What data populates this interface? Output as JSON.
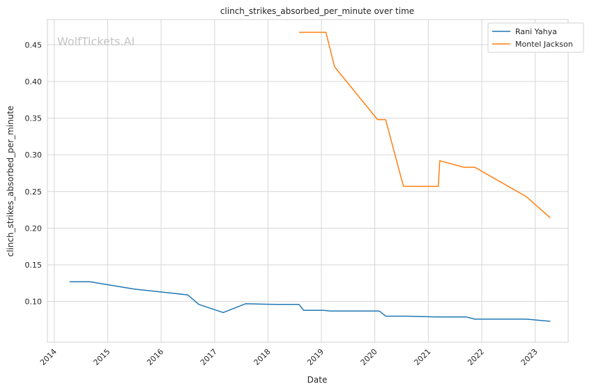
{
  "chart_data": {
    "type": "line",
    "title": "clinch_strikes_absorbed_per_minute over time",
    "xlabel": "Date",
    "ylabel": "clinch_strikes_absorbed_per_minute",
    "x_ticks": [
      "2014",
      "2015",
      "2016",
      "2017",
      "2018",
      "2019",
      "2020",
      "2021",
      "2022",
      "2023"
    ],
    "y_ticks": [
      "0.10",
      "0.15",
      "0.20",
      "0.25",
      "0.30",
      "0.35",
      "0.40",
      "0.45"
    ],
    "xlim": [
      "2013-11-15",
      "2023-08-15"
    ],
    "ylim": [
      0.0445,
      0.4845
    ],
    "grid": true,
    "legend_position": "top-right",
    "watermark": "WolfTickets.AI",
    "series": [
      {
        "name": "Rani Yahya",
        "color": "#1f77b4",
        "points": [
          [
            "2014-04-15",
            0.127
          ],
          [
            "2014-09-01",
            0.127
          ],
          [
            "2015-07-01",
            0.117
          ],
          [
            "2016-07-01",
            0.109
          ],
          [
            "2016-09-15",
            0.096
          ],
          [
            "2017-03-01",
            0.085
          ],
          [
            "2017-08-01",
            0.097
          ],
          [
            "2018-03-01",
            0.096
          ],
          [
            "2018-08-01",
            0.096
          ],
          [
            "2018-09-01",
            0.088
          ],
          [
            "2019-01-15",
            0.088
          ],
          [
            "2019-03-01",
            0.087
          ],
          [
            "2020-02-01",
            0.087
          ],
          [
            "2020-03-15",
            0.08
          ],
          [
            "2020-08-01",
            0.08
          ],
          [
            "2021-03-01",
            0.079
          ],
          [
            "2021-09-15",
            0.079
          ],
          [
            "2021-11-15",
            0.076
          ],
          [
            "2022-11-01",
            0.076
          ],
          [
            "2023-04-15",
            0.073
          ]
        ]
      },
      {
        "name": "Montel Jackson",
        "color": "#ff7f0e",
        "points": [
          [
            "2018-08-01",
            0.467
          ],
          [
            "2019-02-01",
            0.467
          ],
          [
            "2019-04-01",
            0.42
          ],
          [
            "2020-01-20",
            0.348
          ],
          [
            "2020-03-15",
            0.348
          ],
          [
            "2020-07-15",
            0.257
          ],
          [
            "2021-03-10",
            0.257
          ],
          [
            "2021-03-20",
            0.292
          ],
          [
            "2021-09-01",
            0.283
          ],
          [
            "2021-11-15",
            0.283
          ],
          [
            "2022-11-01",
            0.243
          ],
          [
            "2023-04-15",
            0.214
          ]
        ]
      }
    ]
  }
}
